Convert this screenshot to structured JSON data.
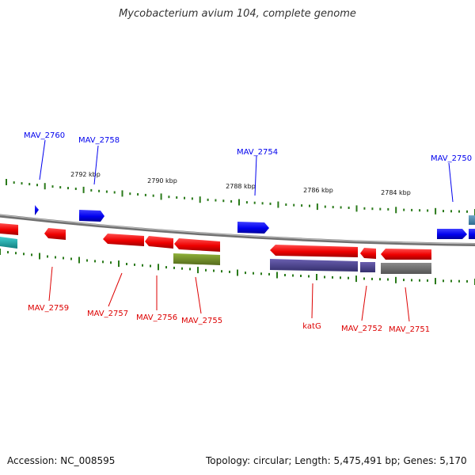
{
  "title": "Mycobacterium avium 104, complete genome",
  "footer": {
    "accession": "Accession: NC_008595",
    "summary": "Topology: circular; Length: 5,475,491 bp; Genes: 5,170"
  },
  "ruler_labels": [
    {
      "text": "2792 kbp"
    },
    {
      "text": "2790 kbp"
    },
    {
      "text": "2788 kbp"
    },
    {
      "text": "2786 kbp"
    },
    {
      "text": "2784 kbp"
    }
  ],
  "forward_genes": [
    {
      "label": "MAV_2760"
    },
    {
      "label": "MAV_2758"
    },
    {
      "label": "MAV_2754"
    },
    {
      "label": "MAV_2750"
    }
  ],
  "reverse_genes": [
    {
      "label": "MAV_2759"
    },
    {
      "label": "MAV_2757"
    },
    {
      "label": "MAV_2756"
    },
    {
      "label": "MAV_2755"
    },
    {
      "label": "katG"
    },
    {
      "label": "MAV_2752"
    },
    {
      "label": "MAV_2751"
    }
  ],
  "colors": {
    "forward_cds": "#0000ee",
    "reverse_cds": "#ee0000",
    "backbone": "#808080",
    "tick": "#2a7a1a",
    "cog_olive": "#6b8e23",
    "cog_purple": "#483d8b",
    "cog_gray": "#6e6e6e",
    "cog_cyan": "#20b2aa"
  }
}
